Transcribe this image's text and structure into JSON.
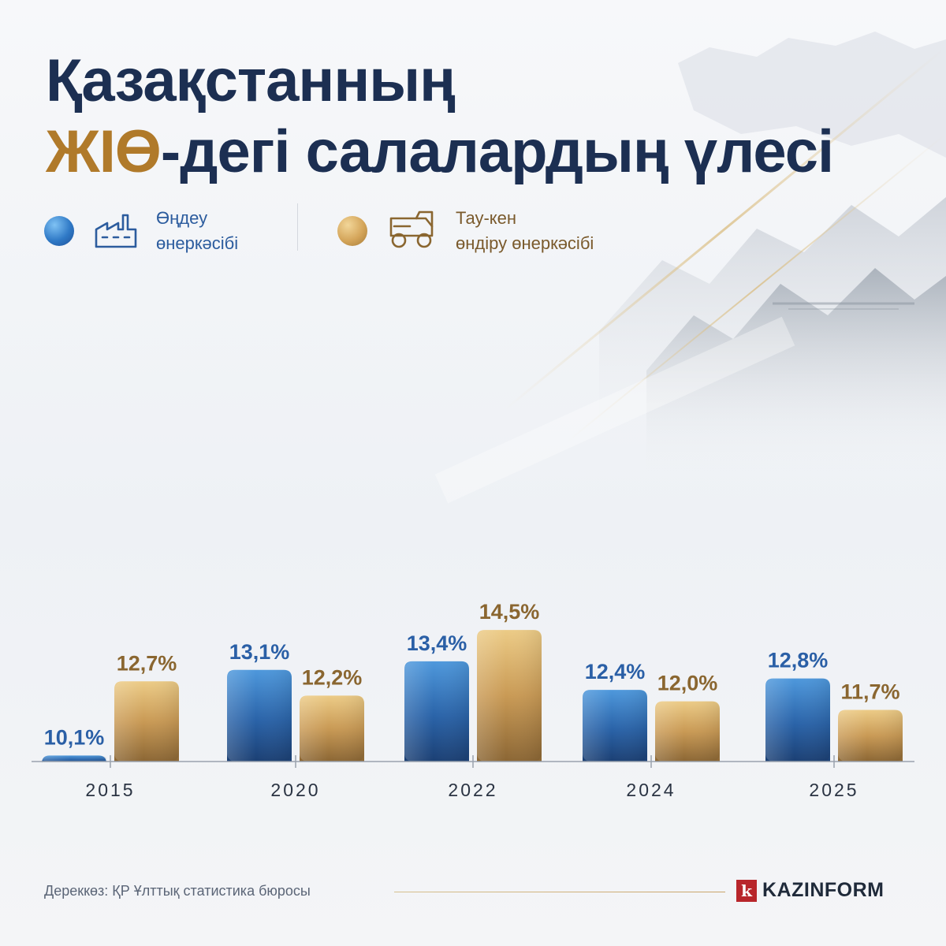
{
  "title": {
    "line1": "Қазақстанның",
    "accent": "ЖІӨ",
    "line2_rest": "-дегі салалардың үлесі"
  },
  "legend": [
    {
      "label": "Өңдеу\nөнеркәсібі",
      "color": "#2f79c6",
      "icon": "factory-icon"
    },
    {
      "label": "Тау-кен\nөндіру өнеркәсібі",
      "color": "#d4a55a",
      "icon": "mining-truck-icon"
    }
  ],
  "chart_data": {
    "type": "bar",
    "title": "Қазақстанның ЖІӨ-дегі салалардың үлесі",
    "categories": [
      "2015",
      "2020",
      "2022",
      "2024",
      "2025"
    ],
    "series": [
      {
        "name": "Өңдеу өнеркәсібі",
        "values": [
          10.1,
          13.1,
          13.4,
          12.4,
          12.8
        ],
        "labels": [
          "10,1%",
          "13,1%",
          "13,4%",
          "12,4%",
          "12,8%"
        ],
        "color": "#2f79c6",
        "label_color": "#2a5fa6"
      },
      {
        "name": "Тау-кен өндіру өнеркәсібі",
        "values": [
          12.7,
          12.2,
          14.5,
          12.0,
          11.7
        ],
        "labels": [
          "12,7%",
          "12,2%",
          "14,5%",
          "12,0%",
          "11,7%"
        ],
        "color": "#d4a55a",
        "label_color": "#8a6630"
      }
    ],
    "grid": false,
    "legend_position": "top"
  },
  "footer": {
    "source": "Дереккөз: ҚР Ұлттық статистика бюросы",
    "brand_mark": "k",
    "brand_name": "KAZINFORM"
  }
}
